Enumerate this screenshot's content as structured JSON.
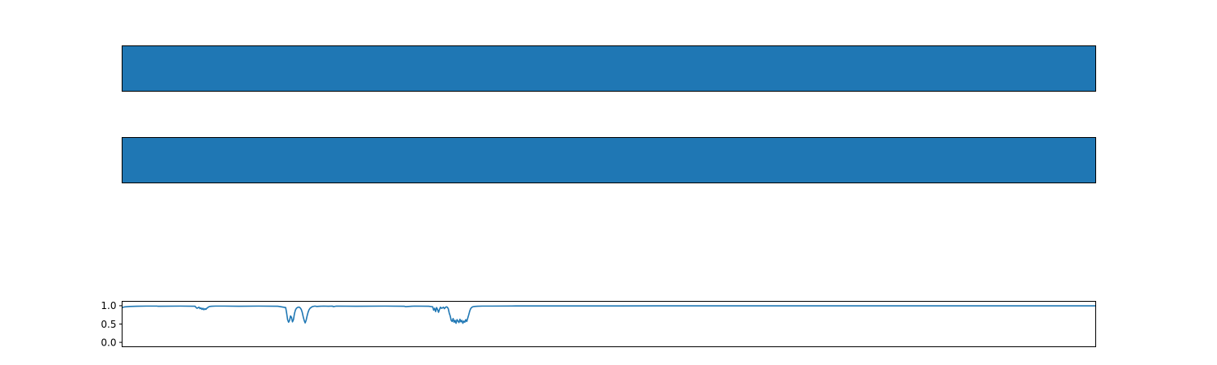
{
  "colors": {
    "series": "#1f77b4",
    "axes": "#000000",
    "background": "#ffffff"
  },
  "chart_data": [
    {
      "type": "heatmap",
      "title": "",
      "xlabel": "",
      "ylabel": "",
      "fill_color": "#1f77b4",
      "axes_visible": false,
      "ticks": "none"
    },
    {
      "type": "heatmap",
      "title": "",
      "xlabel": "",
      "ylabel": "",
      "fill_color": "#1f77b4",
      "axes_visible": false,
      "ticks": "none"
    },
    {
      "type": "line",
      "title": "",
      "xlabel": "",
      "ylabel": "",
      "x_ticks_visible": false,
      "grid": false,
      "xlim": [
        0,
        1000
      ],
      "ylim": [
        -0.12,
        1.12
      ],
      "y_ticks": [
        "0.0",
        "0.5",
        "1.0"
      ],
      "series": [
        {
          "x": [
            0,
            3,
            8,
            15,
            25,
            36,
            37,
            60,
            75,
            76,
            77,
            79,
            80,
            81,
            82,
            83,
            84,
            85,
            86,
            87,
            88,
            89,
            90,
            92,
            96,
            105,
            120,
            140,
            160,
            168,
            169,
            170,
            171,
            172,
            173,
            174,
            175,
            176,
            177,
            178,
            179,
            180,
            181,
            182,
            183,
            184,
            185,
            186,
            187,
            188,
            189,
            190,
            191,
            192,
            193,
            194,
            195,
            196,
            197,
            198,
            200,
            203,
            207,
            212,
            216,
            217,
            220,
            240,
            270,
            290,
            291,
            300,
            315,
            319,
            320,
            321,
            322,
            323,
            324,
            325,
            326,
            327,
            328,
            329,
            330,
            331,
            332,
            333,
            334,
            335,
            336,
            337,
            338,
            339,
            340,
            341,
            342,
            343,
            344,
            345,
            346,
            347,
            348,
            349,
            350,
            351,
            352,
            353,
            354,
            355,
            356,
            357,
            358,
            359,
            360,
            362,
            365,
            370,
            380,
            400,
            450,
            500,
            550,
            600,
            650,
            700,
            750,
            800,
            850,
            900,
            950,
            1000
          ],
          "y": [
            0.95,
            0.97,
            0.98,
            0.985,
            0.99,
            0.99,
            0.985,
            0.99,
            0.985,
            0.95,
            0.93,
            0.96,
            0.92,
            0.94,
            0.9,
            0.93,
            0.89,
            0.92,
            0.9,
            0.93,
            0.95,
            0.97,
            0.98,
            0.985,
            0.99,
            0.99,
            0.985,
            0.99,
            0.985,
            0.95,
            0.8,
            0.62,
            0.55,
            0.6,
            0.72,
            0.68,
            0.56,
            0.62,
            0.78,
            0.88,
            0.93,
            0.95,
            0.96,
            0.96,
            0.94,
            0.9,
            0.82,
            0.7,
            0.6,
            0.53,
            0.6,
            0.72,
            0.82,
            0.89,
            0.93,
            0.95,
            0.97,
            0.98,
            0.985,
            0.99,
            0.98,
            0.985,
            0.99,
            0.985,
            0.99,
            0.975,
            0.99,
            0.985,
            0.99,
            0.985,
            0.975,
            0.99,
            0.985,
            0.97,
            0.88,
            0.93,
            0.84,
            0.95,
            0.9,
            0.82,
            0.9,
            0.96,
            0.93,
            0.94,
            0.96,
            0.92,
            0.95,
            0.97,
            0.96,
            0.92,
            0.8,
            0.72,
            0.6,
            0.57,
            0.65,
            0.55,
            0.6,
            0.52,
            0.62,
            0.58,
            0.54,
            0.63,
            0.56,
            0.6,
            0.52,
            0.58,
            0.55,
            0.62,
            0.57,
            0.66,
            0.75,
            0.85,
            0.92,
            0.95,
            0.97,
            0.98,
            0.985,
            0.99,
            0.99,
            0.993,
            0.995,
            0.995,
            0.996,
            0.996,
            0.996,
            0.996,
            0.996,
            0.996,
            0.996,
            0.996,
            0.996,
            0.996
          ]
        }
      ]
    }
  ]
}
